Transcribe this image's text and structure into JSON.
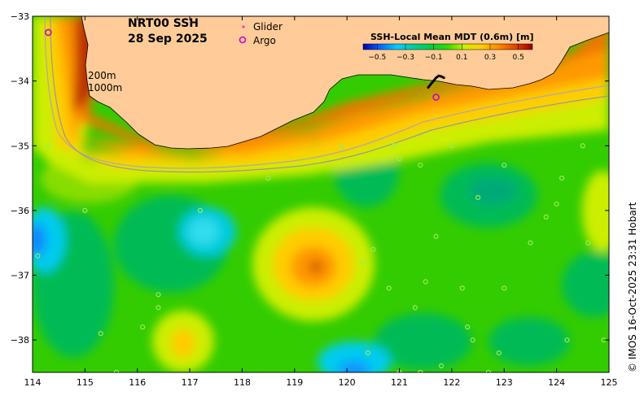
{
  "map": {
    "title_line1": "NRT00 SSH",
    "title_line2": "28 Sep 2025",
    "legend_glider": "Glider",
    "legend_argo": "Argo",
    "glider_color": "#ff33cc",
    "argo_color": "#cc00cc",
    "isobath_200": "200m",
    "isobath_1000": "1000m",
    "credit": "© IMOS 16-Oct-2025 23:31 Hobart",
    "land_color": "#ffcc99",
    "colorbar": {
      "title": "SSH-Local Mean MDT (0.6m) [m]",
      "ticks": [
        "−0.5",
        "−0.3",
        "−0.1",
        "0.1",
        "0.3",
        "0.5"
      ],
      "tick_values": [
        -0.5,
        -0.3,
        -0.1,
        0.1,
        0.3,
        0.5
      ],
      "min": -0.6,
      "max": 0.6,
      "colors": [
        "#0000aa",
        "#0066ff",
        "#00ccff",
        "#00cc99",
        "#00cc44",
        "#33dd00",
        "#ccee00",
        "#ffcc00",
        "#ff8800",
        "#dd4400",
        "#990000"
      ]
    },
    "x_axis": {
      "ticks": [
        "114",
        "115",
        "116",
        "117",
        "118",
        "119",
        "120",
        "121",
        "122",
        "123",
        "124",
        "125"
      ],
      "values": [
        114,
        115,
        116,
        117,
        118,
        119,
        120,
        121,
        122,
        123,
        124,
        125
      ],
      "range": [
        114,
        125
      ]
    },
    "y_axis": {
      "ticks": [
        "−33",
        "−34",
        "−35",
        "−36",
        "−37",
        "−38"
      ],
      "values": [
        -33,
        -34,
        -35,
        -36,
        -37,
        -38
      ],
      "range": [
        -38.5,
        -33
      ]
    },
    "argo_floats": [
      {
        "lon": 121.7,
        "lat": -34.25
      },
      {
        "lon": 114.3,
        "lat": -33.25
      }
    ],
    "glider_track": [
      {
        "lon": 121.55,
        "lat": -34.1
      },
      {
        "lon": 121.6,
        "lat": -34.05
      },
      {
        "lon": 121.65,
        "lat": -34.0
      },
      {
        "lon": 121.7,
        "lat": -33.95
      },
      {
        "lon": 121.75,
        "lat": -33.92
      },
      {
        "lon": 121.8,
        "lat": -33.93
      },
      {
        "lon": 121.85,
        "lat": -33.95
      }
    ],
    "drifters": [
      {
        "lon": 114.3,
        "lat": -35.0
      },
      {
        "lon": 115.0,
        "lat": -36.0
      },
      {
        "lon": 114.1,
        "lat": -36.7
      },
      {
        "lon": 115.3,
        "lat": -37.9
      },
      {
        "lon": 115.6,
        "lat": -38.5
      },
      {
        "lon": 116.1,
        "lat": -37.8
      },
      {
        "lon": 116.4,
        "lat": -37.3
      },
      {
        "lon": 116.4,
        "lat": -37.5
      },
      {
        "lon": 117.2,
        "lat": -36.0
      },
      {
        "lon": 118.5,
        "lat": -35.5
      },
      {
        "lon": 119.9,
        "lat": -35.0
      },
      {
        "lon": 120.3,
        "lat": -36.8
      },
      {
        "lon": 120.5,
        "lat": -36.6
      },
      {
        "lon": 120.4,
        "lat": -38.2
      },
      {
        "lon": 120.8,
        "lat": -37.2
      },
      {
        "lon": 120.9,
        "lat": -35.0
      },
      {
        "lon": 121.0,
        "lat": -35.2
      },
      {
        "lon": 121.3,
        "lat": -37.5
      },
      {
        "lon": 121.4,
        "lat": -35.3
      },
      {
        "lon": 121.5,
        "lat": -37.1
      },
      {
        "lon": 121.7,
        "lat": -36.4
      },
      {
        "lon": 121.8,
        "lat": -38.4
      },
      {
        "lon": 122.0,
        "lat": -35.0
      },
      {
        "lon": 122.2,
        "lat": -37.2
      },
      {
        "lon": 122.3,
        "lat": -37.8
      },
      {
        "lon": 122.4,
        "lat": -38.0
      },
      {
        "lon": 122.5,
        "lat": -35.8
      },
      {
        "lon": 122.9,
        "lat": -38.2
      },
      {
        "lon": 123.0,
        "lat": -35.3
      },
      {
        "lon": 123.0,
        "lat": -37.2
      },
      {
        "lon": 123.5,
        "lat": -36.5
      },
      {
        "lon": 123.8,
        "lat": -36.1
      },
      {
        "lon": 124.0,
        "lat": -35.9
      },
      {
        "lon": 124.1,
        "lat": -35.5
      },
      {
        "lon": 124.5,
        "lat": -35.0
      },
      {
        "lon": 124.6,
        "lat": -36.5
      },
      {
        "lon": 124.2,
        "lat": -38.0
      },
      {
        "lon": 124.9,
        "lat": -38.0
      },
      {
        "lon": 121.0,
        "lat": -38.5
      },
      {
        "lon": 121.4,
        "lat": -38.5
      },
      {
        "lon": 122.7,
        "lat": -38.5
      }
    ]
  }
}
